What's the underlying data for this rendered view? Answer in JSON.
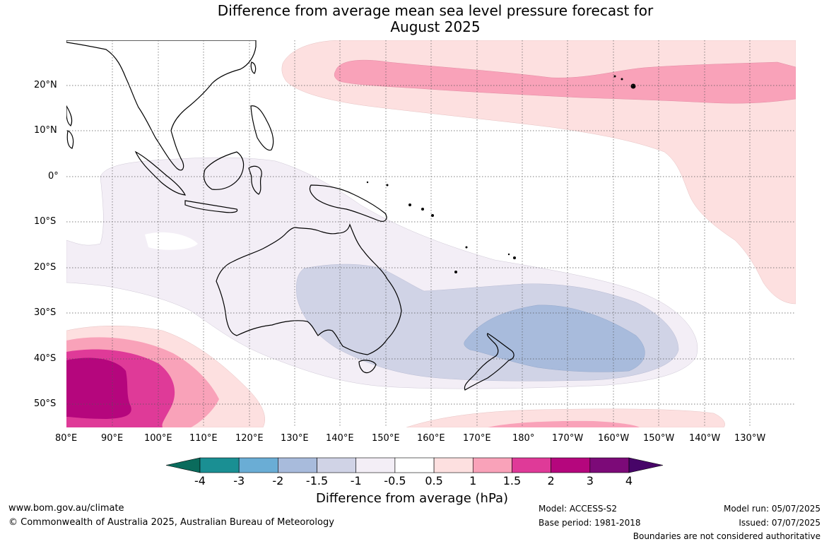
{
  "title_lines": [
    "Difference from average mean sea level pressure forecast for",
    "August 2025"
  ],
  "lon_labels": [
    "80°E",
    "90°E",
    "100°E",
    "110°E",
    "120°E",
    "130°E",
    "140°E",
    "150°E",
    "160°E",
    "170°E",
    "180°",
    "170°W",
    "160°W",
    "150°W",
    "140°W",
    "130°W"
  ],
  "lat_labels": [
    "20°N",
    "10°N",
    "0°",
    "10°S",
    "20°S",
    "30°S",
    "40°S",
    "50°S"
  ],
  "colorbar": {
    "ticks": [
      "-4",
      "-3",
      "-2",
      "-1.5",
      "-1",
      "-0.5",
      "0.5",
      "1",
      "1.5",
      "2",
      "3",
      "4"
    ],
    "colors": {
      "lt_-4": "#0a6b5c",
      "-4_-3": "#1a8f93",
      "-3_-2": "#6aadd5",
      "-2_-1.5": "#a8bbdc",
      "-1.5_-1": "#d0d3e6",
      "-1_-0.5": "#f3eef6",
      "-0.5_0.5": "#ffffff",
      "0.5_1": "#fde0e0",
      "1_1.5": "#f9a2b9",
      "1.5_2": "#df3a98",
      "2_3": "#b5067d",
      "3_4": "#7c0a78",
      "gt_4": "#470568"
    },
    "label": "Difference from average (hPa)"
  },
  "footer": {
    "website": "www.bom.gov.au/climate",
    "copyright": "© Commonwealth of Australia 2025, Australian Bureau of Meteorology",
    "model": "Model: ACCESS-S2",
    "base_period": "Base period: 1981-2018",
    "model_run": "Model run: 05/07/2025",
    "issued": "Issued: 07/07/2025",
    "disclaimer": "Boundaries are not considered authoritative"
  }
}
